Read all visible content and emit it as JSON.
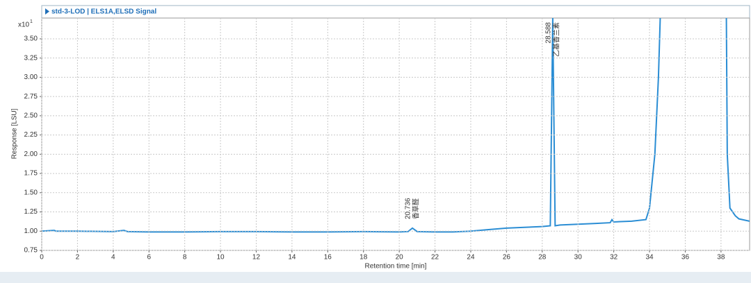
{
  "chart_data": {
    "type": "line",
    "title": "std-3-LOD | ELS1A,ELSD Signal",
    "y_multiplier": "x10",
    "y_multiplier_exp": "1",
    "ylabel": "Response [LSU]",
    "xlabel": "Retention time [min]",
    "xlim": [
      0,
      39.6
    ],
    "ylim": [
      0.75,
      3.77
    ],
    "xticks": [
      0,
      2,
      4,
      6,
      8,
      10,
      12,
      14,
      16,
      18,
      20,
      22,
      24,
      26,
      28,
      30,
      32,
      34,
      36,
      38
    ],
    "yticks": [
      0.75,
      {
        "value": 1,
        "label": "1.00"
      },
      1.25,
      {
        "value": 1.5,
        "label": "1.50"
      },
      1.75,
      {
        "value": 2,
        "label": "2.00"
      },
      2.25,
      {
        "value": 2.5,
        "label": "2.50"
      },
      2.75,
      {
        "value": 3,
        "label": "3.00"
      },
      3.25,
      {
        "value": 3.5,
        "label": "3.50"
      }
    ],
    "grid": true,
    "x": [
      0,
      0.7,
      0.8,
      2,
      4,
      4.6,
      4.8,
      6,
      8,
      10,
      12,
      14,
      16,
      18,
      20,
      20.5,
      20.736,
      21,
      22,
      23,
      24,
      25,
      26,
      27,
      28,
      28.45,
      28.588,
      28.72,
      29,
      30,
      31,
      31.8,
      31.9,
      32,
      33,
      33.8,
      34.0,
      34.3,
      34.5,
      34.6,
      36,
      38.3,
      38.35,
      38.5,
      38.8,
      39,
      39.6
    ],
    "series": [
      {
        "name": "ELS1A,ELSD Signal",
        "color": "#2a8dd4",
        "values": [
          1.0,
          1.01,
          1.0,
          1.0,
          0.995,
          1.01,
          0.995,
          0.99,
          0.99,
          0.995,
          0.995,
          0.99,
          0.99,
          0.995,
          0.99,
          0.995,
          1.04,
          0.995,
          0.99,
          0.99,
          1.0,
          1.02,
          1.04,
          1.05,
          1.06,
          1.07,
          3.77,
          1.07,
          1.08,
          1.09,
          1.1,
          1.11,
          1.15,
          1.12,
          1.13,
          1.15,
          1.3,
          2.0,
          3.0,
          3.77,
          null,
          3.77,
          2.0,
          1.3,
          1.2,
          1.16,
          1.13
        ]
      }
    ],
    "annotations": [
      {
        "x": 20.736,
        "text": "20.736",
        "compound": "香草醛"
      },
      {
        "x": 28.588,
        "text": "28.588",
        "compound": "乙基香兰素"
      }
    ]
  }
}
